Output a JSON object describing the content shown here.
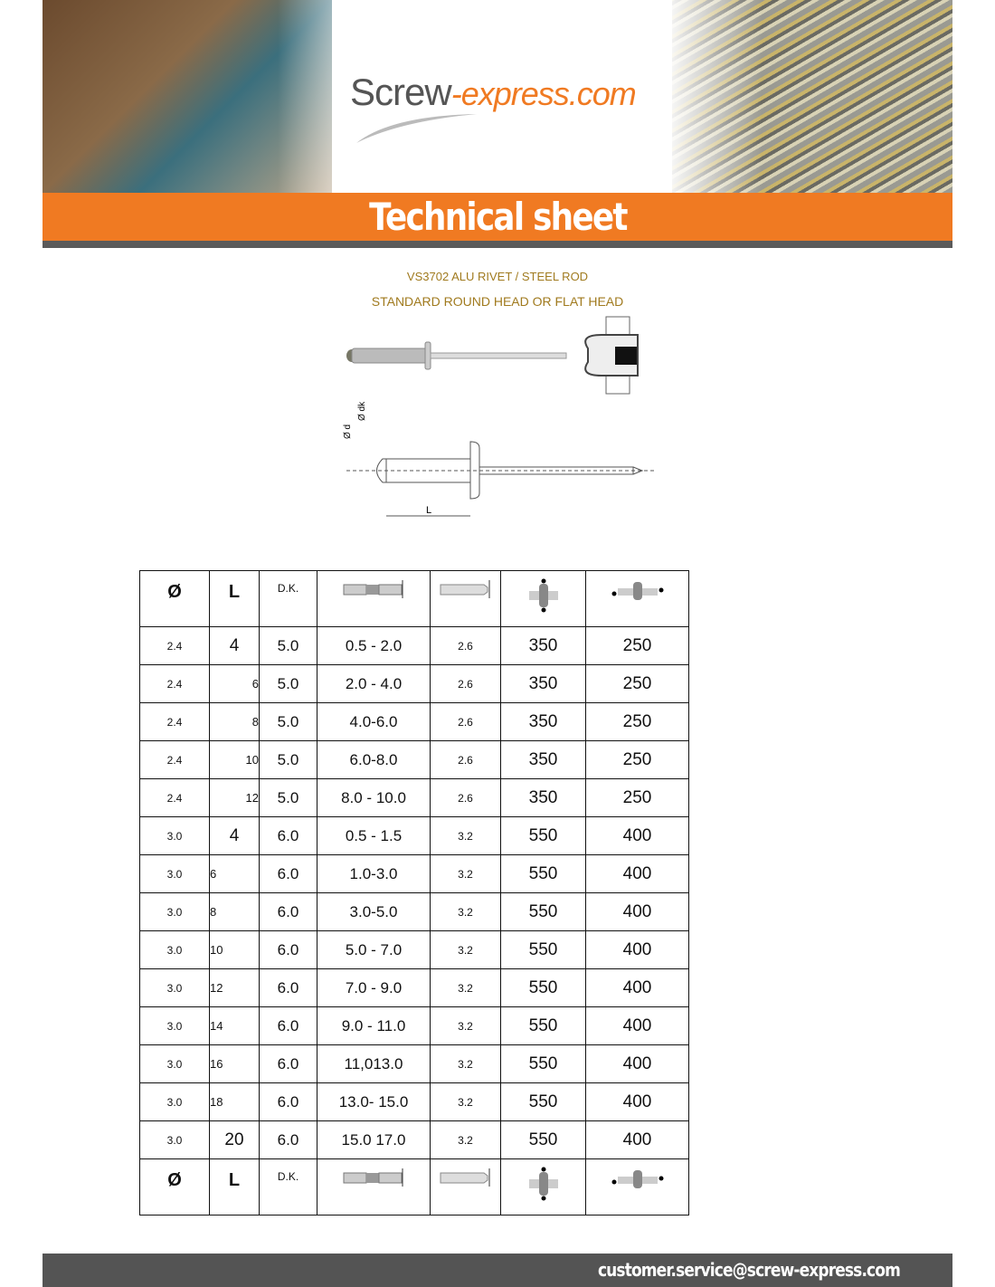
{
  "header": {
    "logo_main": "Screw",
    "logo_ext": "-express.com",
    "banner_title": "Technical sheet"
  },
  "product": {
    "line1": "VS3702 ALU RIVET / STEEL ROD",
    "line2": "STANDARD ROUND HEAD OR FLAT HEAD",
    "diagram_labels": {
      "d": "Ø d",
      "dk": "Ø dk",
      "L": "L"
    }
  },
  "table": {
    "header": [
      "Ø",
      "L",
      "D.K."
    ],
    "header_icons": [
      "grip-range-icon",
      "rivet-hole-diameter-icon",
      "tensile-strength-icon",
      "shear-strength-icon"
    ],
    "rows": [
      [
        "2.4",
        "4",
        "5.0",
        "0.5 - 2.0",
        "2.6",
        "350",
        "250"
      ],
      [
        "2.4",
        "6",
        "5.0",
        "2.0 - 4.0",
        "2.6",
        "350",
        "250"
      ],
      [
        "2.4",
        "8",
        "5.0",
        "4.0-6.0",
        "2.6",
        "350",
        "250"
      ],
      [
        "2.4",
        "10",
        "5.0",
        "6.0-8.0",
        "2.6",
        "350",
        "250"
      ],
      [
        "2.4",
        "12",
        "5.0",
        "8.0 - 10.0",
        "2.6",
        "350",
        "250"
      ],
      [
        "3.0",
        "4",
        "6.0",
        "0.5 - 1.5",
        "3.2",
        "550",
        "400"
      ],
      [
        "3.0",
        "6",
        "6.0",
        "1.0-3.0",
        "3.2",
        "550",
        "400"
      ],
      [
        "3.0",
        "8",
        "6.0",
        "3.0-5.0",
        "3.2",
        "550",
        "400"
      ],
      [
        "3.0",
        "10",
        "6.0",
        "5.0 - 7.0",
        "3.2",
        "550",
        "400"
      ],
      [
        "3.0",
        "12",
        "6.0",
        "7.0 - 9.0",
        "3.2",
        "550",
        "400"
      ],
      [
        "3.0",
        "14",
        "6.0",
        "9.0 - 11.0",
        "3.2",
        "550",
        "400"
      ],
      [
        "3.0",
        "16",
        "6.0",
        "11,013.0",
        "3.2",
        "550",
        "400"
      ],
      [
        "3.0",
        "18",
        "6.0",
        "13.0- 15.0",
        "3.2",
        "550",
        "400"
      ],
      [
        "3.0",
        "20",
        "6.0",
        "15.0 17.0",
        "3.2",
        "550",
        "400"
      ]
    ]
  },
  "footer": {
    "email": "customer.service@screw-express.com"
  },
  "colors": {
    "accent": "#f07a22",
    "dark_gray": "#545454",
    "gold_text": "#a07a1e"
  }
}
